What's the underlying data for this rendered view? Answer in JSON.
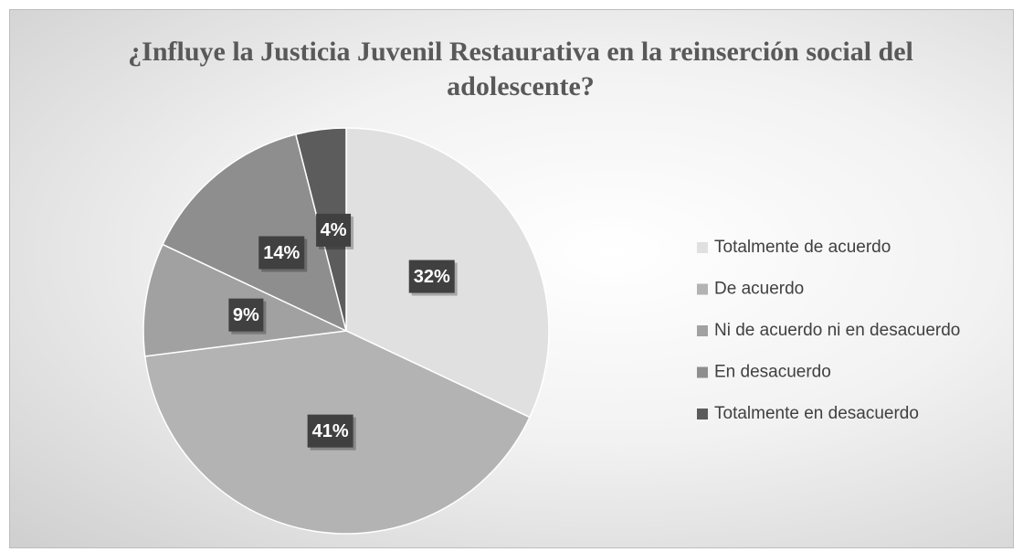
{
  "chart_data": {
    "type": "pie",
    "title": "¿Influye la Justicia Juvenil Restaurativa en la reinserción social del adolescente?",
    "categories": [
      "Totalmente de acuerdo",
      "De acuerdo",
      "Ni de acuerdo ni en desacuerdo",
      "En desacuerdo",
      "Totalmente en desacuerdo"
    ],
    "values": [
      32,
      41,
      9,
      14,
      4
    ],
    "value_labels": [
      "32%",
      "41%",
      "9%",
      "14%",
      "4%"
    ],
    "colors": [
      "#e0e0e0",
      "#b3b3b3",
      "#a1a1a1",
      "#8e8e8e",
      "#5c5c5c"
    ],
    "legend": "right"
  }
}
